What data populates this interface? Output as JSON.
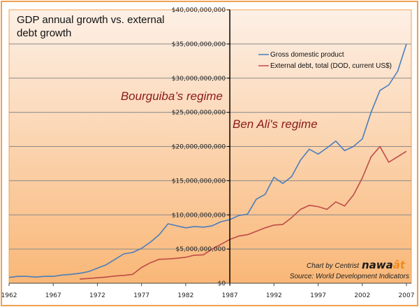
{
  "chart_data": {
    "type": "line",
    "title": "GDP annual growth vs. external debt growth",
    "xlabel": "",
    "ylabel": "",
    "x": [
      1962,
      1963,
      1964,
      1965,
      1966,
      1967,
      1968,
      1969,
      1970,
      1971,
      1972,
      1973,
      1974,
      1975,
      1976,
      1977,
      1978,
      1979,
      1980,
      1981,
      1982,
      1983,
      1984,
      1985,
      1986,
      1987,
      1988,
      1989,
      1990,
      1991,
      1992,
      1993,
      1994,
      1995,
      1996,
      1997,
      1998,
      1999,
      2000,
      2001,
      2002,
      2003,
      2004,
      2005,
      2006,
      2007
    ],
    "xlim": [
      1962,
      2007
    ],
    "ylim": [
      0,
      40000000000
    ],
    "x_ticks": [
      "1962",
      "1967",
      "1972",
      "1977",
      "1982",
      "1987",
      "1992",
      "1997",
      "2002",
      "2007"
    ],
    "y_ticks": [
      "$0",
      "$5,000,000,000",
      "$10,000,000,000",
      "$15,000,000,000",
      "$20,000,000,000",
      "$25,000,000,000",
      "$30,000,000,000",
      "$35,000,000,000",
      "$40,000,000,000"
    ],
    "grid": true,
    "legend_position": "top-right",
    "series": [
      {
        "name": "Gross domestic product",
        "color": "#4a7ebb",
        "values_billion_usd": [
          0.85,
          1.0,
          1.0,
          0.9,
          1.0,
          1.0,
          1.2,
          1.3,
          1.45,
          1.7,
          2.2,
          2.7,
          3.5,
          4.3,
          4.5,
          5.1,
          6.0,
          7.1,
          8.7,
          8.4,
          8.1,
          8.3,
          8.2,
          8.4,
          9.0,
          9.3,
          9.9,
          10.1,
          12.3,
          13.0,
          15.5,
          14.6,
          15.6,
          18.0,
          19.6,
          18.9,
          19.8,
          20.8,
          19.4,
          20.0,
          21.1,
          25.0,
          28.2,
          29.0,
          31.0,
          35.0
        ]
      },
      {
        "name": "External debt, total (DOD, current US$)",
        "color": "#be4b48",
        "values_billion_usd": [
          null,
          null,
          null,
          null,
          null,
          null,
          null,
          null,
          0.6,
          0.7,
          0.8,
          0.9,
          1.05,
          1.15,
          1.3,
          2.3,
          3.0,
          3.5,
          3.55,
          3.65,
          3.8,
          4.1,
          4.15,
          5.0,
          5.7,
          6.4,
          6.9,
          7.1,
          7.6,
          8.1,
          8.5,
          8.6,
          9.6,
          10.8,
          11.4,
          11.2,
          10.8,
          11.9,
          11.3,
          12.9,
          15.4,
          18.5,
          20.0,
          17.7,
          18.5,
          19.3
        ]
      }
    ],
    "annotations": {
      "divider_year": 1987,
      "left_label": "Bourguiba’s regime",
      "right_label": "Ben Ali's regime"
    },
    "credit": "Chart by Centrist",
    "logo_text": "nawaat",
    "source": "Source: World Development Indicators"
  },
  "colors": {
    "frame": "#f0a050",
    "background_top": "#fdeee2",
    "background_bottom": "#f9b878",
    "divider": "#000000"
  }
}
